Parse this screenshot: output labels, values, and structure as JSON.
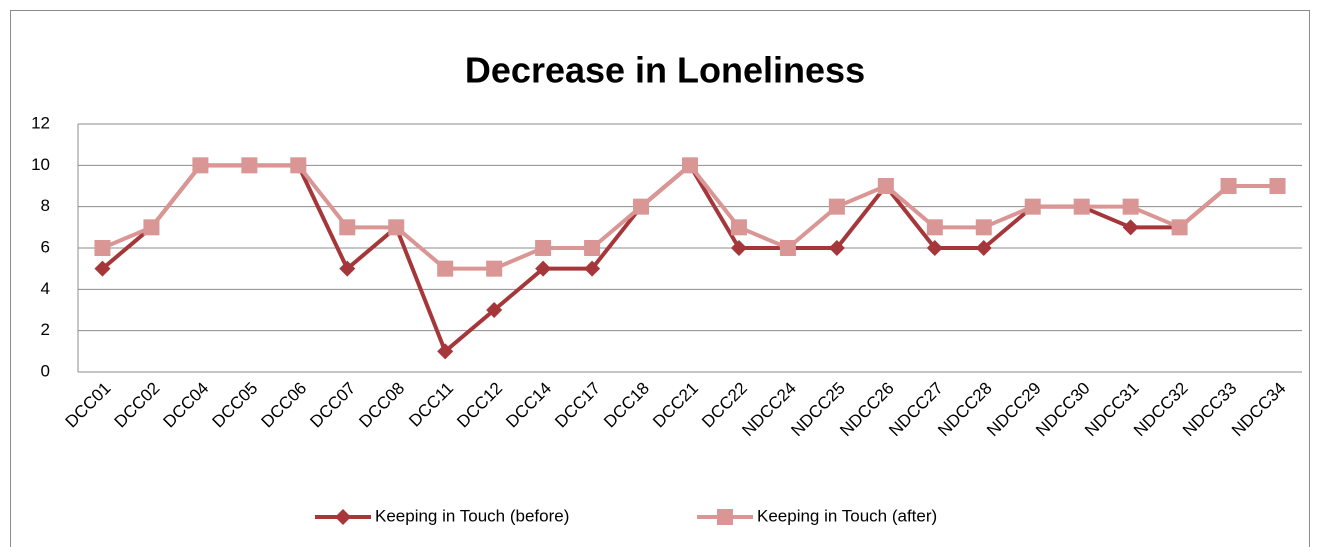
{
  "chart_data": {
    "type": "line",
    "title": "Decrease in Loneliness",
    "categories": [
      "DCC01",
      "DCC02",
      "DCC04",
      "DCC05",
      "DCC06",
      "DCC07",
      "DCC08",
      "DCC11",
      "DCC12",
      "DCC14",
      "DCC17",
      "DCC18",
      "DCC21",
      "DCC22",
      "NDCC24",
      "NDCC25",
      "NDCC26",
      "NDCC27",
      "NDCC28",
      "NDCC29",
      "NDCC30",
      "NDCC31",
      "NDCC32",
      "NDCC33",
      "NDCC34"
    ],
    "series": [
      {
        "name": "Keeping in Touch (before)",
        "color": "#a5373a",
        "marker": "diamond",
        "values": [
          5,
          7,
          10,
          10,
          10,
          5,
          7,
          1,
          3,
          5,
          5,
          8,
          10,
          6,
          6,
          6,
          9,
          6,
          6,
          8,
          8,
          7,
          7,
          9,
          9
        ]
      },
      {
        "name": "Keeping in Touch (after)",
        "color": "#d99694",
        "marker": "square",
        "values": [
          6,
          7,
          10,
          10,
          10,
          7,
          7,
          5,
          5,
          6,
          6,
          8,
          10,
          7,
          6,
          8,
          9,
          7,
          7,
          8,
          8,
          8,
          7,
          9,
          9
        ]
      }
    ],
    "ylim": [
      0,
      12
    ],
    "yticks": [
      0,
      2,
      4,
      6,
      8,
      10,
      12
    ],
    "grid": true,
    "legend": "bottom"
  }
}
